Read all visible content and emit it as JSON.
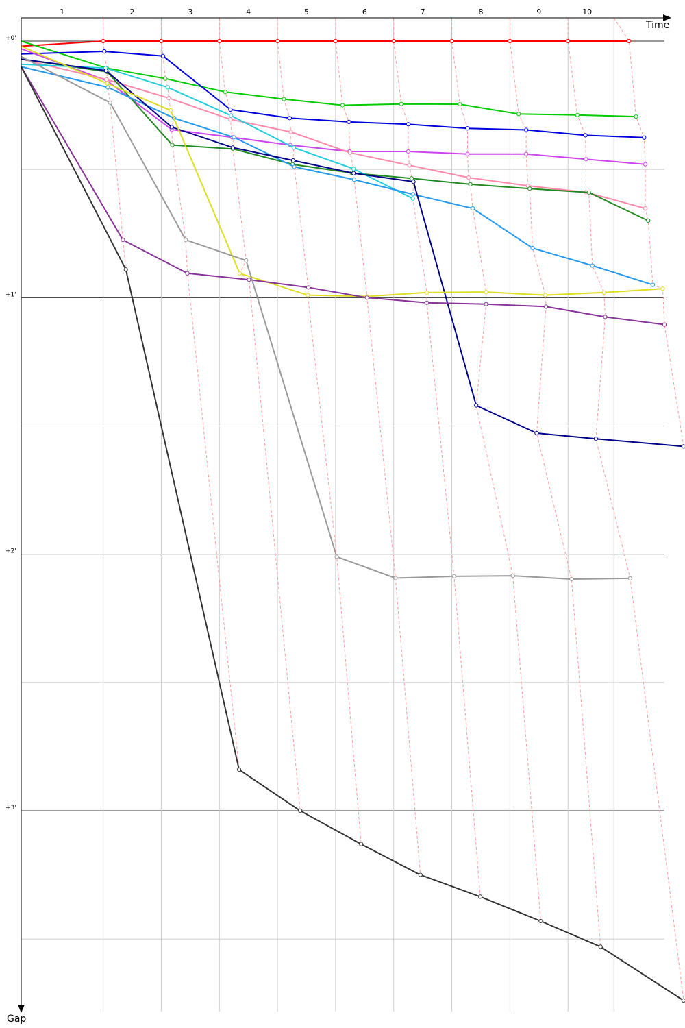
{
  "chart_data": {
    "type": "line",
    "xlabel": "Time",
    "ylabel": "Gap",
    "lap_labels": [
      "1",
      "2",
      "3",
      "4",
      "5",
      "6",
      "7",
      "8",
      "9",
      "10"
    ],
    "y_tick_labels": [
      "+0'",
      "+1'",
      "+2'",
      "+3'"
    ],
    "y_major_ticks": [
      0,
      1,
      2,
      3
    ],
    "ylim": [
      0,
      3.74
    ],
    "xlim": [
      0,
      11.4
    ],
    "grid": true,
    "minor_grid_step": 0.5,
    "lap_marks": [
      {
        "lap": "1",
        "time": 0.0
      },
      {
        "lap": "2",
        "time": 1.41
      },
      {
        "lap": "3",
        "time": 2.41
      },
      {
        "lap": "4",
        "time": 3.41
      },
      {
        "lap": "5",
        "time": 4.41
      },
      {
        "lap": "6",
        "time": 5.41
      },
      {
        "lap": "7",
        "time": 6.41
      },
      {
        "lap": "8",
        "time": 7.41
      },
      {
        "lap": "9",
        "time": 8.41
      },
      {
        "lap": "10",
        "time": 9.41
      }
    ],
    "series": [
      {
        "color": "#ff0000",
        "points": [
          [
            0.0,
            0.02
          ],
          [
            1.41,
            0.0
          ],
          [
            2.41,
            0.0
          ],
          [
            3.41,
            0.0
          ],
          [
            4.41,
            0.0
          ],
          [
            5.41,
            0.0
          ],
          [
            6.41,
            0.0
          ],
          [
            7.41,
            0.0
          ],
          [
            8.41,
            0.0
          ],
          [
            9.41,
            0.0
          ],
          [
            10.46,
            0.0
          ]
        ]
      },
      {
        "color": "#00cc00",
        "points": [
          [
            0.0,
            0.0
          ],
          [
            1.47,
            0.105
          ],
          [
            2.48,
            0.146
          ],
          [
            3.51,
            0.198
          ],
          [
            4.52,
            0.226
          ],
          [
            5.53,
            0.25
          ],
          [
            6.54,
            0.245
          ],
          [
            7.55,
            0.246
          ],
          [
            8.56,
            0.284
          ],
          [
            9.57,
            0.288
          ],
          [
            10.58,
            0.294
          ]
        ]
      },
      {
        "color": "#0000dd",
        "points": [
          [
            0.0,
            0.05
          ],
          [
            1.43,
            0.04
          ],
          [
            2.44,
            0.058
          ],
          [
            3.6,
            0.267
          ],
          [
            4.62,
            0.3
          ],
          [
            5.64,
            0.315
          ],
          [
            6.66,
            0.324
          ],
          [
            7.68,
            0.34
          ],
          [
            8.69,
            0.346
          ],
          [
            9.71,
            0.367
          ],
          [
            10.72,
            0.376
          ]
        ]
      },
      {
        "color": "#cc44ee",
        "points": [
          [
            0.0,
            0.03
          ],
          [
            1.48,
            0.155
          ],
          [
            2.59,
            0.345
          ],
          [
            3.63,
            0.375
          ],
          [
            4.63,
            0.405
          ],
          [
            5.65,
            0.43
          ],
          [
            6.66,
            0.43
          ],
          [
            7.68,
            0.44
          ],
          [
            8.69,
            0.44
          ],
          [
            9.72,
            0.46
          ],
          [
            10.74,
            0.48
          ]
        ]
      },
      {
        "color": "#ff88aa",
        "points": [
          [
            0.0,
            0.07
          ],
          [
            1.47,
            0.15
          ],
          [
            2.54,
            0.222
          ],
          [
            3.6,
            0.305
          ],
          [
            4.64,
            0.354
          ],
          [
            5.66,
            0.435
          ],
          [
            6.68,
            0.484
          ],
          [
            7.7,
            0.532
          ],
          [
            8.72,
            0.564
          ],
          [
            9.72,
            0.589
          ],
          [
            10.74,
            0.652
          ]
        ]
      },
      {
        "color": "#228822",
        "points": [
          [
            0.0,
            0.07
          ],
          [
            1.48,
            0.12
          ],
          [
            2.6,
            0.405
          ],
          [
            3.64,
            0.42
          ],
          [
            4.67,
            0.48
          ],
          [
            5.69,
            0.514
          ],
          [
            6.72,
            0.535
          ],
          [
            7.73,
            0.558
          ],
          [
            8.75,
            0.575
          ],
          [
            9.77,
            0.59
          ],
          [
            10.79,
            0.7
          ]
        ]
      },
      {
        "color": "#22ccdd",
        "points": [
          [
            0.0,
            0.09
          ],
          [
            1.45,
            0.105
          ],
          [
            2.52,
            0.18
          ],
          [
            3.61,
            0.29
          ],
          [
            4.69,
            0.415
          ],
          [
            5.72,
            0.498
          ],
          [
            6.74,
            0.614
          ]
        ]
      },
      {
        "color": "#2299ee",
        "points": [
          [
            0.0,
            0.1
          ],
          [
            1.49,
            0.18
          ],
          [
            2.63,
            0.3
          ],
          [
            3.66,
            0.375
          ],
          [
            4.7,
            0.49
          ],
          [
            5.73,
            0.54
          ],
          [
            6.74,
            0.597
          ],
          [
            7.77,
            0.652
          ],
          [
            8.8,
            0.807
          ],
          [
            9.83,
            0.875
          ],
          [
            10.87,
            0.95
          ]
        ]
      },
      {
        "color": "#000088",
        "points": [
          [
            0.0,
            0.07
          ],
          [
            1.46,
            0.115
          ],
          [
            2.59,
            0.335
          ],
          [
            3.64,
            0.415
          ],
          [
            4.68,
            0.465
          ],
          [
            5.72,
            0.515
          ],
          [
            6.75,
            0.548
          ],
          [
            7.83,
            1.42
          ],
          [
            8.87,
            1.528
          ],
          [
            9.89,
            1.55
          ],
          [
            11.4,
            1.58
          ]
        ]
      },
      {
        "color": "#dddd22",
        "points": [
          [
            0.0,
            0.02
          ],
          [
            1.48,
            0.165
          ],
          [
            2.57,
            0.27
          ],
          [
            3.76,
            0.905
          ],
          [
            4.93,
            0.99
          ],
          [
            5.95,
            0.995
          ],
          [
            6.98,
            0.98
          ],
          [
            8.0,
            0.978
          ],
          [
            9.02,
            0.99
          ],
          [
            10.03,
            0.98
          ],
          [
            11.04,
            0.965
          ]
        ]
      },
      {
        "color": "#883399",
        "points": [
          [
            0.0,
            0.1
          ],
          [
            1.75,
            0.775
          ],
          [
            2.86,
            0.905
          ],
          [
            3.92,
            0.93
          ],
          [
            4.94,
            0.96
          ],
          [
            5.95,
            1.0
          ],
          [
            6.98,
            1.02
          ],
          [
            8.0,
            1.025
          ],
          [
            9.03,
            1.035
          ],
          [
            10.05,
            1.075
          ],
          [
            11.07,
            1.105
          ]
        ]
      },
      {
        "color": "#999999",
        "points": [
          [
            0.0,
            0.06
          ],
          [
            1.53,
            0.24
          ],
          [
            2.83,
            0.775
          ],
          [
            3.87,
            0.855
          ],
          [
            5.43,
            2.01
          ],
          [
            6.44,
            2.093
          ],
          [
            7.45,
            2.086
          ],
          [
            8.46,
            2.084
          ],
          [
            9.47,
            2.097
          ],
          [
            10.48,
            2.094
          ]
        ]
      },
      {
        "color": "#333333",
        "points": [
          [
            0.0,
            0.1
          ],
          [
            1.8,
            0.89
          ],
          [
            3.75,
            2.84
          ],
          [
            4.8,
            3.0
          ],
          [
            5.85,
            3.13
          ],
          [
            6.87,
            3.25
          ],
          [
            7.9,
            3.335
          ],
          [
            8.94,
            3.43
          ],
          [
            9.97,
            3.53
          ],
          [
            11.4,
            3.74
          ]
        ]
      }
    ]
  }
}
